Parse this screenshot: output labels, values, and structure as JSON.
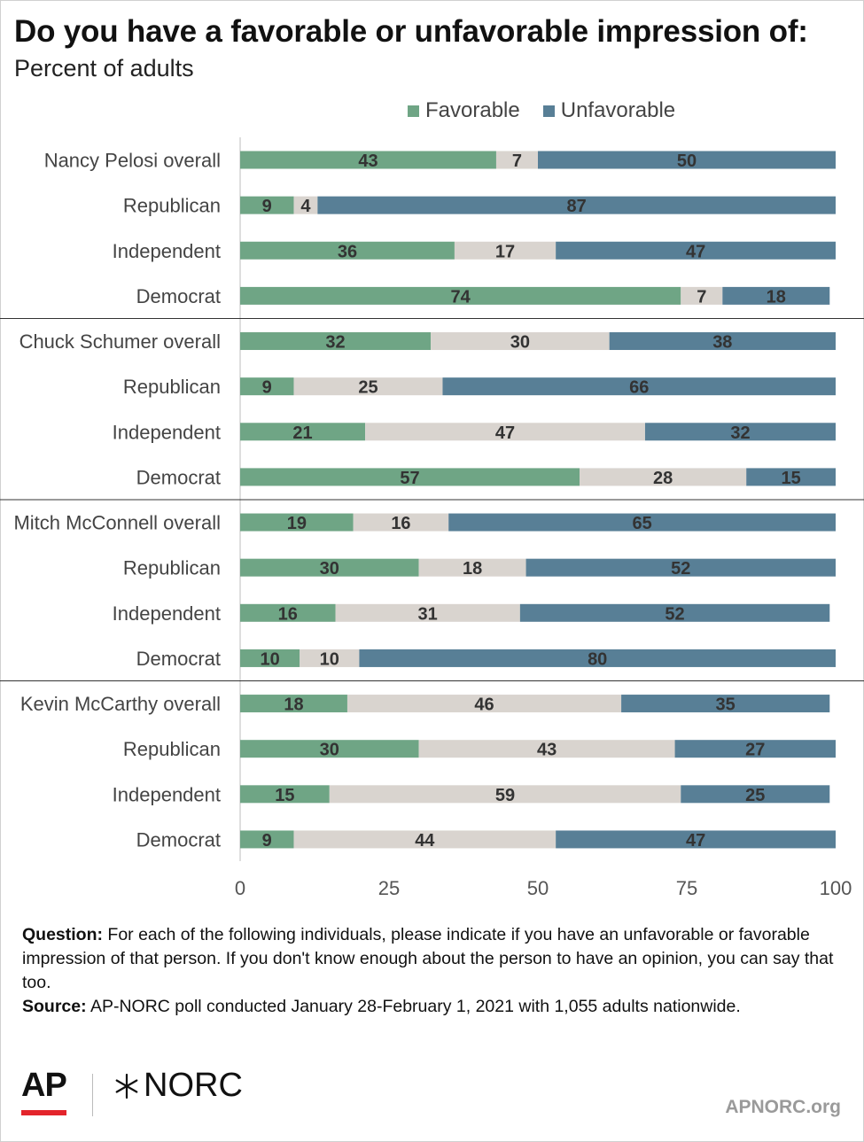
{
  "header": {
    "title": "Do you have a favorable or unfavorable impression of:",
    "subtitle": "Percent of adults"
  },
  "legend": [
    {
      "label": "Favorable",
      "color": "#6fa585"
    },
    {
      "label": "Unfavorable",
      "color": "#587f96"
    }
  ],
  "colors": {
    "favorable": "#6fa585",
    "neutral": "#d9d4cf",
    "unfavorable": "#587f96"
  },
  "chart_data": {
    "type": "bar",
    "orientation": "horizontal",
    "stacked": true,
    "xlim": [
      0,
      100
    ],
    "xticks": [
      0,
      25,
      50,
      75,
      100
    ],
    "categories": [
      "Nancy Pelosi overall",
      "Republican",
      "Independent",
      "Democrat",
      "Chuck Schumer overall",
      "Republican",
      "Independent",
      "Democrat",
      "Mitch McConnell overall",
      "Republican",
      "Independent",
      "Democrat",
      "Kevin McCarthy overall",
      "Republican",
      "Independent",
      "Democrat"
    ],
    "series": [
      {
        "name": "Favorable",
        "values": [
          43,
          9,
          36,
          74,
          32,
          9,
          21,
          57,
          19,
          30,
          16,
          10,
          18,
          30,
          15,
          9
        ]
      },
      {
        "values": [
          7,
          4,
          17,
          7,
          30,
          25,
          47,
          28,
          16,
          18,
          31,
          10,
          46,
          43,
          59,
          44
        ]
      },
      {
        "name": "Unfavorable",
        "values": [
          50,
          87,
          47,
          18,
          38,
          66,
          32,
          15,
          65,
          52,
          52,
          80,
          35,
          27,
          25,
          47
        ]
      }
    ],
    "legend_position": "top",
    "grid": false
  },
  "footer": {
    "question_label": "Question:",
    "question_text": " For each of the following individuals, please indicate if you have an unfavorable or favorable impression of that person. If you don't know enough about the person to have an opinion, you can say that too.",
    "source_label": "Source:",
    "source_text": " AP-NORC poll conducted January 28-February 1, 2021 with 1,055 adults nationwide.",
    "logo_ap": "AP",
    "logo_norc": "NORC",
    "site": "APNORC.org"
  }
}
